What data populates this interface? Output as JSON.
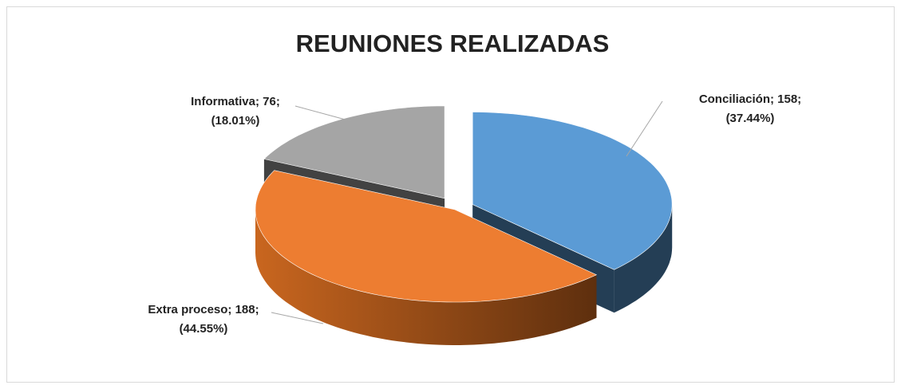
{
  "chart_data": {
    "type": "pie3d",
    "title": "REUNIONES REALIZADAS",
    "categories": [
      "Conciliación",
      "Extra proceso",
      "Informativa"
    ],
    "values": [
      158,
      188,
      76
    ],
    "data_labels": [
      [
        "Conciliación; 158;",
        "(37.44%)"
      ],
      [
        "Extra proceso; 188;",
        "(44.55%)"
      ],
      [
        "Informativa; 76;",
        "(18.01%)"
      ]
    ],
    "colors": [
      "#5b9bd5",
      "#ed7d31",
      "#a5a5a5"
    ],
    "explode": [
      true,
      false,
      true
    ]
  }
}
